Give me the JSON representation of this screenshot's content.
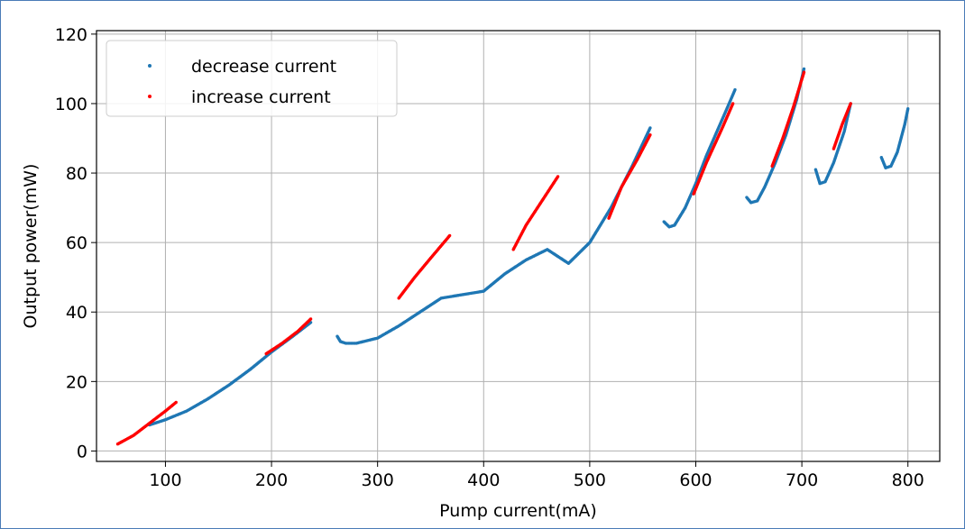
{
  "chart_data": {
    "type": "scatter",
    "title": "",
    "xlabel": "Pump current(mA)",
    "ylabel": "Output power(mW)",
    "xlim": [
      35,
      830
    ],
    "ylim": [
      -3,
      121
    ],
    "xticks": [
      100,
      200,
      300,
      400,
      500,
      600,
      700,
      800
    ],
    "yticks": [
      0,
      20,
      40,
      60,
      80,
      100,
      120
    ],
    "grid": true,
    "legend_position": "top-left",
    "series": [
      {
        "name": "decrease current",
        "color": "#1f77b4",
        "segments": [
          {
            "x": [
              85,
              100,
              120,
              140,
              160,
              180,
              200,
              220,
              237
            ],
            "y": [
              7.5,
              9,
              11.5,
              15,
              19,
              23.5,
              28.5,
              33,
              37
            ]
          },
          {
            "x": [
              262,
              265,
              270,
              280,
              300,
              320,
              340,
              360,
              380,
              400,
              420,
              440,
              460,
              480,
              500,
              520,
              540,
              557
            ],
            "y": [
              33,
              31.5,
              31,
              31,
              32.5,
              36,
              40,
              44,
              45,
              46,
              51,
              55,
              58,
              54,
              60,
              70,
              82,
              93
            ]
          },
          {
            "x": [
              570,
              575,
              580,
              590,
              600,
              610,
              620,
              630,
              637
            ],
            "y": [
              66,
              64.5,
              65,
              70,
              77,
              85,
              92,
              99,
              104
            ]
          },
          {
            "x": [
              648,
              652,
              658,
              665,
              675,
              685,
              695,
              702
            ],
            "y": [
              73,
              71.5,
              72,
              76,
              83,
              91,
              101,
              110
            ]
          },
          {
            "x": [
              713,
              717,
              722,
              730,
              740,
              746
            ],
            "y": [
              81,
              77,
              77.5,
              83,
              92,
              100
            ]
          },
          {
            "x": [
              775,
              779,
              784,
              790,
              797,
              800
            ],
            "y": [
              84.5,
              81.5,
              82,
              86,
              94,
              98.5
            ]
          }
        ]
      },
      {
        "name": "increase current",
        "color": "#ff0000",
        "segments": [
          {
            "x": [
              55,
              70,
              85,
              100,
              110
            ],
            "y": [
              2,
              4.5,
              8,
              11.5,
              14
            ]
          },
          {
            "x": [
              195,
              210,
              225,
              237
            ],
            "y": [
              28,
              31,
              34.5,
              38
            ]
          },
          {
            "x": [
              320,
              335,
              350,
              368
            ],
            "y": [
              44,
              50,
              55.5,
              62
            ]
          },
          {
            "x": [
              428,
              440,
              455,
              470
            ],
            "y": [
              58,
              65,
              72,
              79
            ]
          },
          {
            "x": [
              518,
              530,
              545,
              557
            ],
            "y": [
              67,
              76,
              84,
              91
            ]
          },
          {
            "x": [
              598,
              610,
              625,
              635
            ],
            "y": [
              74,
              83,
              93,
              100
            ]
          },
          {
            "x": [
              672,
              682,
              692,
              702
            ],
            "y": [
              82,
              90,
              99,
              109
            ]
          },
          {
            "x": [
              730,
              738,
              746
            ],
            "y": [
              87,
              94,
              100
            ]
          }
        ]
      }
    ]
  }
}
